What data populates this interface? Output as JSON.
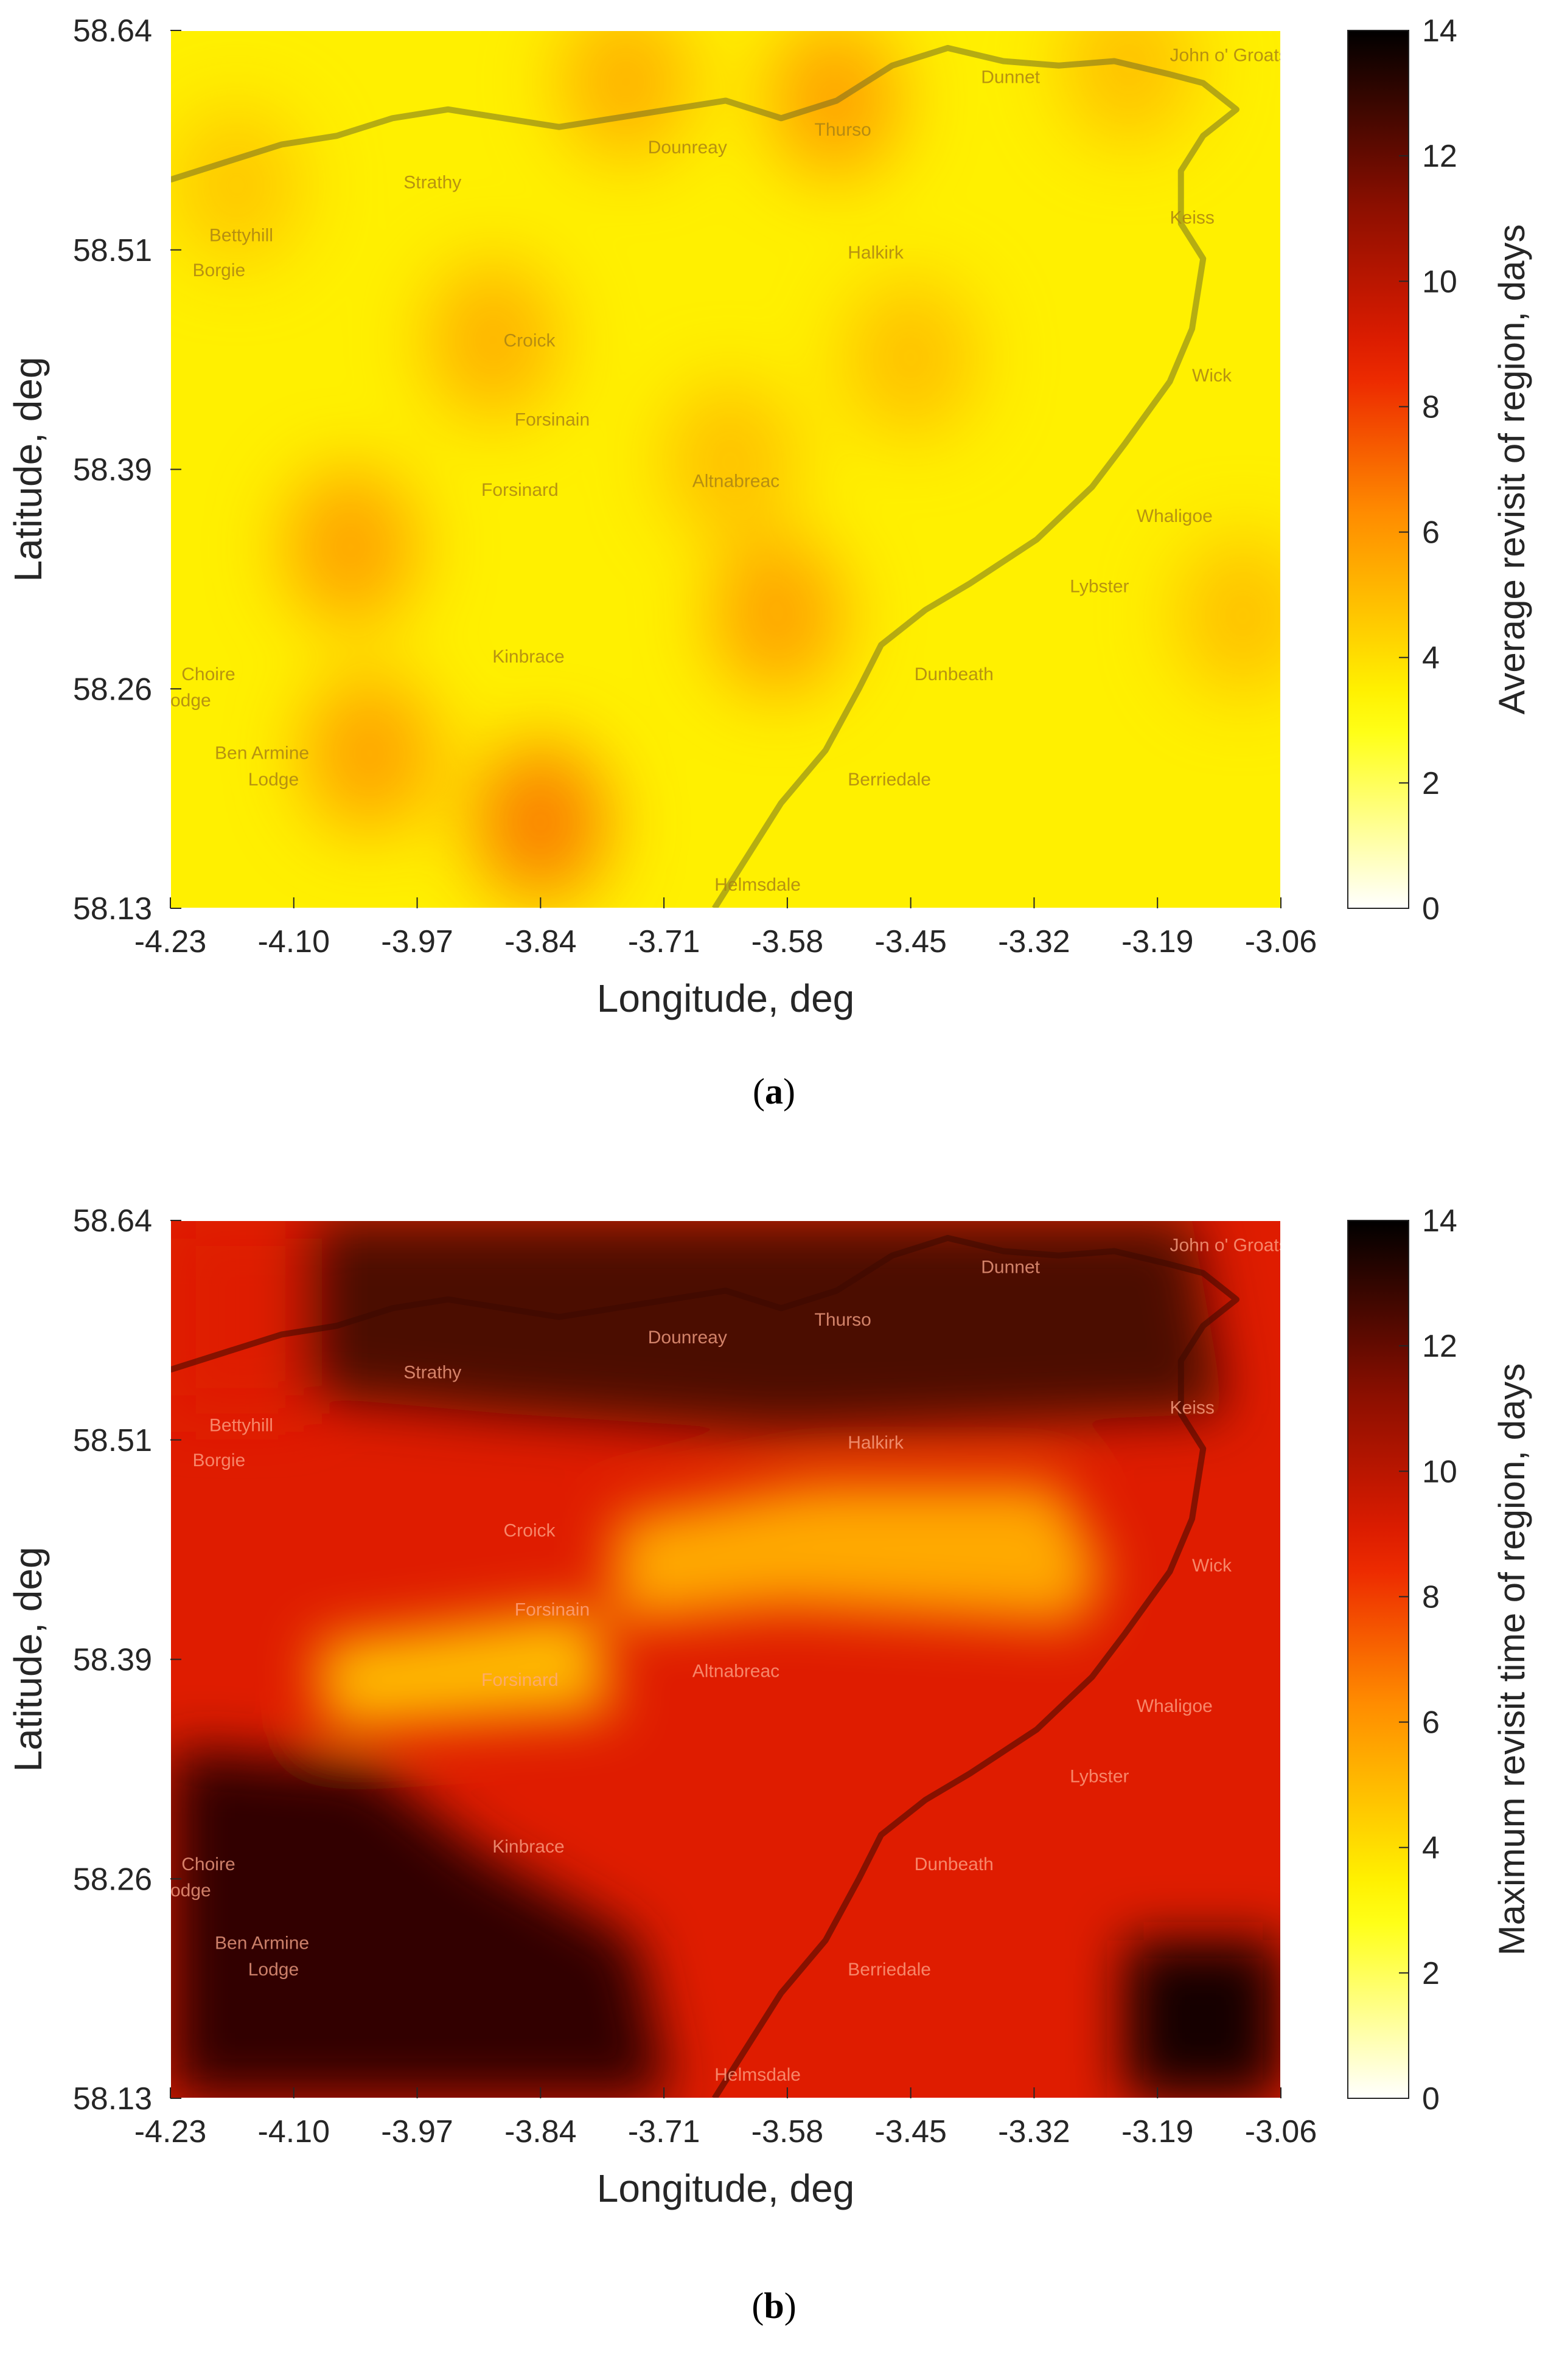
{
  "chart_data": [
    {
      "type": "heatmap",
      "panel_label": "a",
      "xlabel": "Longitude, deg",
      "ylabel": "Latitude, deg",
      "colorbar_label": "Average revisit of region, days",
      "colormap": "hot (reversed)",
      "x_ticks": [
        "-4.23",
        "-4.10",
        "-3.97",
        "-3.84",
        "-3.71",
        "-3.58",
        "-3.45",
        "-3.32",
        "-3.19",
        "-3.06"
      ],
      "y_ticks": [
        "58.64",
        "58.51",
        "58.39",
        "58.26",
        "58.13"
      ],
      "colorbar_ticks": [
        "0",
        "2",
        "4",
        "6",
        "8",
        "10",
        "12",
        "14"
      ],
      "xlim": [
        -4.23,
        -3.06
      ],
      "ylim": [
        58.13,
        58.64
      ],
      "clim": [
        0,
        14
      ],
      "base_value": 3.5,
      "hotspots": [
        {
          "lon": -3.53,
          "lat": 58.6,
          "value": 6.0
        },
        {
          "lon": -3.75,
          "lat": 58.61,
          "value": 5.5
        },
        {
          "lon": -4.04,
          "lat": 58.34,
          "value": 6.0
        },
        {
          "lon": -3.89,
          "lat": 58.46,
          "value": 5.5
        },
        {
          "lon": -3.84,
          "lat": 58.18,
          "value": 7.0
        },
        {
          "lon": -4.02,
          "lat": 58.22,
          "value": 6.0
        },
        {
          "lon": -3.59,
          "lat": 58.3,
          "value": 6.0
        },
        {
          "lon": -3.45,
          "lat": 58.45,
          "value": 5.0
        },
        {
          "lon": -3.64,
          "lat": 58.39,
          "value": 5.0
        },
        {
          "lon": -3.1,
          "lat": 58.3,
          "value": 5.0
        },
        {
          "lon": -3.22,
          "lat": 58.62,
          "value": 5.0
        },
        {
          "lon": -4.16,
          "lat": 58.55,
          "value": 4.8
        }
      ],
      "place_labels": [
        "Dunnet",
        "John o' Groats",
        "Thurso",
        "Dounreay",
        "Strathy",
        "Bettyhill",
        "Borgie",
        "Halkirk",
        "Keiss",
        "Croick",
        "Forsinain",
        "Wick",
        "Forsinard",
        "Altnabreac",
        "Whaligoe",
        "Lybster",
        "Kinbrace",
        "Dunbeath",
        "Choire",
        "odge",
        "Ben Armine",
        "Lodge",
        "Berriedale",
        "Helmsdale"
      ]
    },
    {
      "type": "heatmap",
      "panel_label": "b",
      "xlabel": "Longitude, deg",
      "ylabel": "Latitude, deg",
      "colorbar_label": "Maximum revisit time of region, days",
      "colormap": "hot (reversed)",
      "x_ticks": [
        "-4.23",
        "-4.10",
        "-3.97",
        "-3.84",
        "-3.71",
        "-3.58",
        "-3.45",
        "-3.32",
        "-3.19",
        "-3.06"
      ],
      "y_ticks": [
        "58.64",
        "58.51",
        "58.39",
        "58.26",
        "58.13"
      ],
      "colorbar_ticks": [
        "0",
        "2",
        "4",
        "6",
        "8",
        "10",
        "12",
        "14"
      ],
      "xlim": [
        -4.23,
        -3.06
      ],
      "ylim": [
        58.13,
        58.64
      ],
      "clim": [
        0,
        14
      ],
      "region_values": {
        "north_coast_band": 12.5,
        "north_west_corner": 9.0,
        "central_south": 9.0,
        "central_yellow_band": 5.5,
        "west_yellow_patch": 5.0,
        "south_west_block": 13.0,
        "east_sea": 9.0,
        "south_east_block": 13.5
      },
      "place_labels": [
        "Dunnet",
        "John o' Groats",
        "Thurso",
        "Dounreay",
        "Strathy",
        "Bettyhill",
        "Borgie",
        "Halkirk",
        "Keiss",
        "Croick",
        "Forsinain",
        "Wick",
        "Forsinard",
        "Altnabreac",
        "Whaligoe",
        "Lybster",
        "Kinbrace",
        "Dunbeath",
        "Choire",
        "odge",
        "Ben Armine",
        "Lodge",
        "Berriedale",
        "Helmsdale"
      ]
    }
  ]
}
